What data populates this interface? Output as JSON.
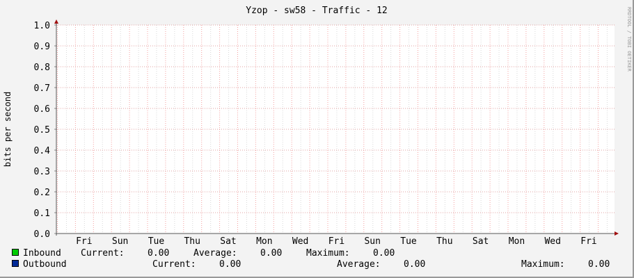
{
  "chart_data": {
    "type": "line",
    "title": "Yzop - sw58 - Traffic - 12",
    "ylabel": "bits per second",
    "xlabel": "",
    "ylim": [
      0,
      1.0
    ],
    "y_ticks": [
      "0.0",
      "0.1",
      "0.2",
      "0.3",
      "0.4",
      "0.5",
      "0.6",
      "0.7",
      "0.8",
      "0.9",
      "1.0"
    ],
    "x_ticks": [
      "Fri",
      "Sun",
      "Tue",
      "Thu",
      "Sat",
      "Mon",
      "Wed",
      "Fri",
      "Sun",
      "Tue",
      "Thu",
      "Sat",
      "Mon",
      "Wed",
      "Fri"
    ],
    "grid": true,
    "watermark": "RRDTOOL / TOBI OETIKER",
    "series": [
      {
        "name": "Inbound",
        "color": "#00cc00",
        "values": [],
        "current": "0.00",
        "average": "0.00",
        "maximum": "0.00"
      },
      {
        "name": "Outbound",
        "color": "#002a97",
        "values": [],
        "current": "0.00",
        "average": "0.00",
        "maximum": "0.00"
      }
    ]
  },
  "legend": {
    "current_label": "Current:",
    "average_label": "Average:",
    "maximum_label": "Maximum:"
  }
}
